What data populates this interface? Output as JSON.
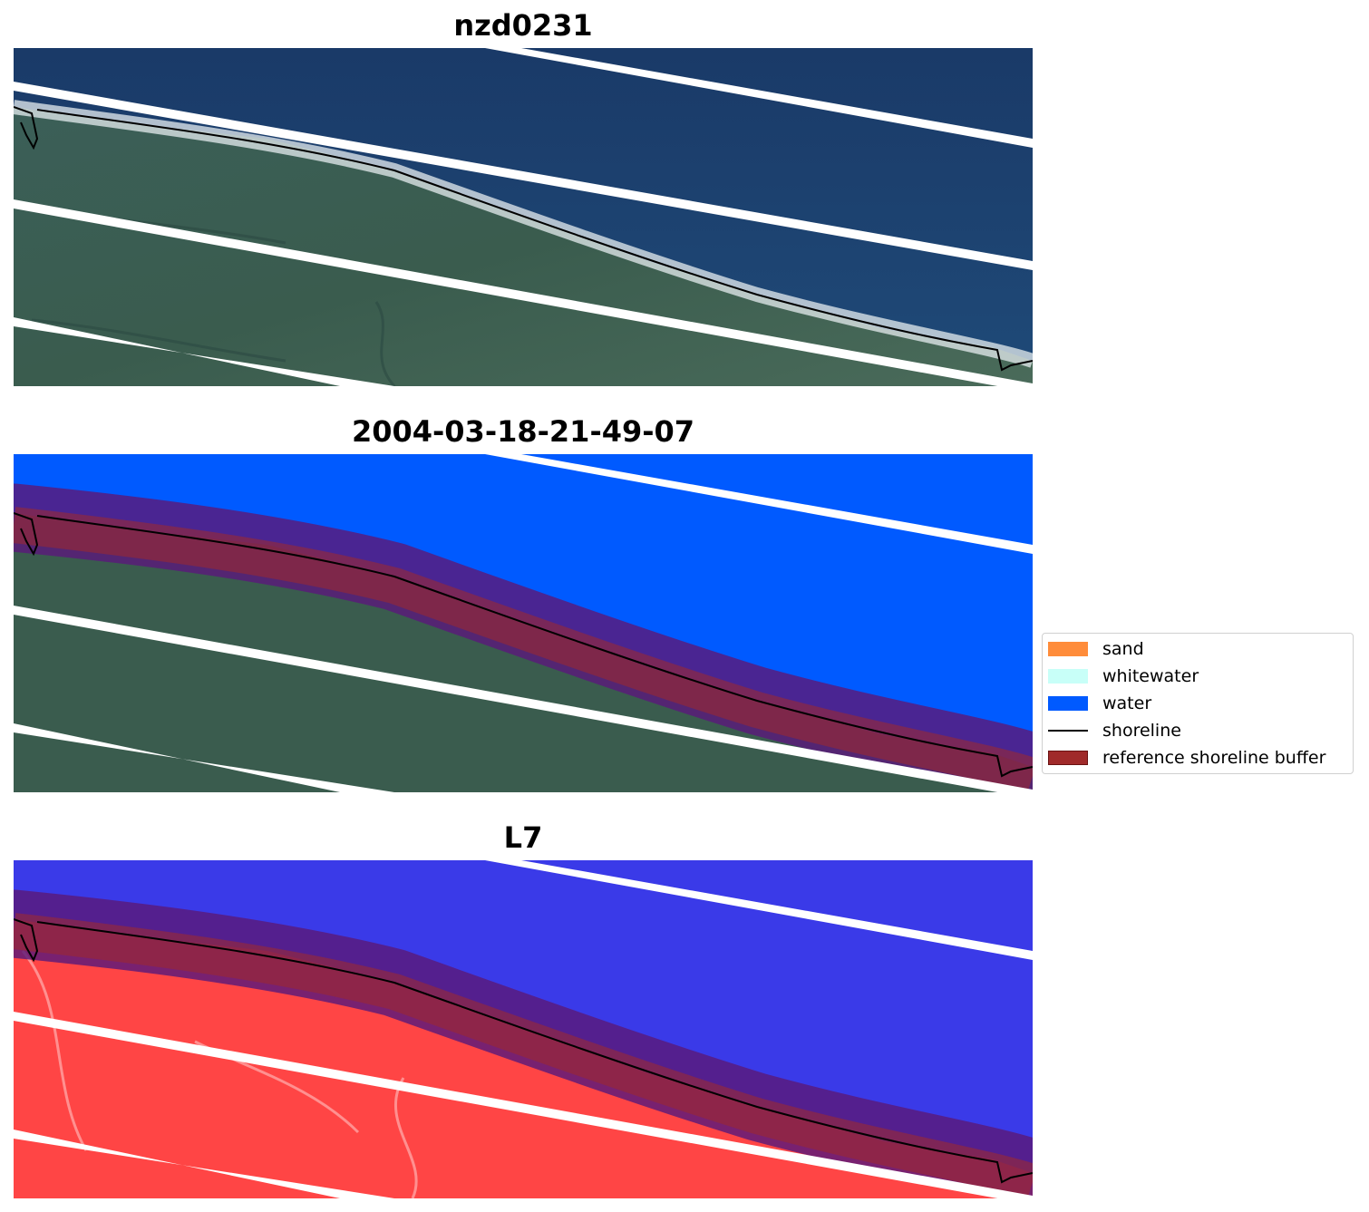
{
  "panels": [
    {
      "title": "nzd0231",
      "style": "rgb"
    },
    {
      "title": "2004-03-18-21-49-07",
      "style": "classified"
    },
    {
      "title": "L7",
      "style": "mndwi"
    }
  ],
  "legend": {
    "items": [
      {
        "label": "sand",
        "kind": "patch",
        "color": "#ff8c3a"
      },
      {
        "label": "whitewater",
        "kind": "patch",
        "color": "#c8fff8"
      },
      {
        "label": "water",
        "kind": "patch",
        "color": "#005aff"
      },
      {
        "label": "shoreline",
        "kind": "line",
        "color": "#000000"
      },
      {
        "label": "reference shoreline buffer",
        "kind": "patch",
        "color": "#a02a2a"
      }
    ]
  },
  "colors": {
    "ocean_rgb": "#1c3f6d",
    "land_rgb": "#36594f",
    "water_class": "#005aff",
    "buffer": "#a02a2a",
    "mndwi_water": "#3a3ae8",
    "mndwi_land": "#ff4545",
    "stripe": "#ffffff"
  }
}
